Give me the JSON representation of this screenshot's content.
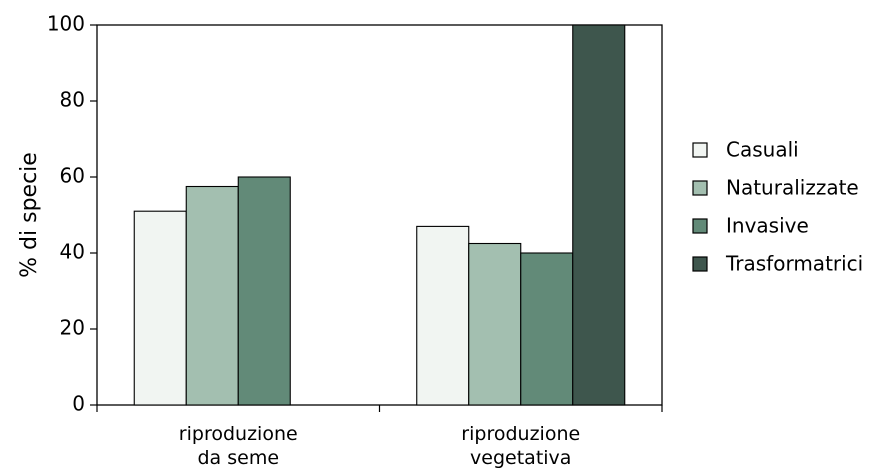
{
  "chart_data": {
    "type": "bar",
    "categories": [
      [
        "riproduzione",
        "da seme"
      ],
      [
        "riproduzione",
        "vegetativa"
      ]
    ],
    "series": [
      {
        "name": "Casuali",
        "values": [
          51,
          47
        ],
        "color": "#f1f5f2"
      },
      {
        "name": "Naturalizzate",
        "values": [
          57.5,
          42.5
        ],
        "color": "#a3bfb0"
      },
      {
        "name": "Invasive",
        "values": [
          60,
          40
        ],
        "color": "#628a78"
      },
      {
        "name": "Trasformatrici",
        "values": [
          null,
          100
        ],
        "color": "#3e564d"
      }
    ],
    "ylabel": "% di specie",
    "ylim": [
      0,
      100
    ],
    "yticks": [
      "0",
      "20",
      "40",
      "60",
      "80",
      "100"
    ],
    "legend_position": "right",
    "grid": false
  }
}
